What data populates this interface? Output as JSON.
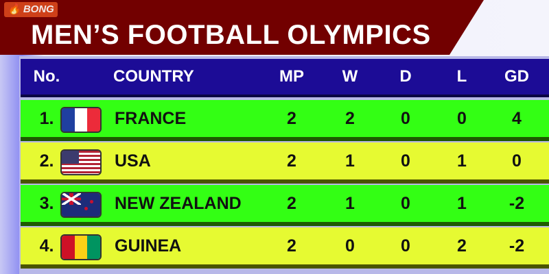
{
  "title": "MEN’S FOOTBALL OLYMPICS",
  "logo": "BONG",
  "headers": {
    "no": "No.",
    "country": "COUNTRY",
    "mp": "MP",
    "w": "W",
    "d": "D",
    "l": "L",
    "gd": "GD"
  },
  "rows": [
    {
      "no": "1.",
      "flag": "france-flag",
      "country": "FRANCE",
      "mp": "2",
      "w": "2",
      "d": "0",
      "l": "0",
      "gd": "4"
    },
    {
      "no": "2.",
      "flag": "usa-flag",
      "country": "USA",
      "mp": "2",
      "w": "1",
      "d": "0",
      "l": "1",
      "gd": "0"
    },
    {
      "no": "3.",
      "flag": "new-zealand-flag",
      "country": "NEW ZEALAND",
      "mp": "2",
      "w": "1",
      "d": "0",
      "l": "1",
      "gd": "-2"
    },
    {
      "no": "4.",
      "flag": "guinea-flag",
      "country": "GUINEA",
      "mp": "2",
      "w": "0",
      "d": "0",
      "l": "2",
      "gd": "-2"
    }
  ],
  "colors": {
    "title_bg": "#720000",
    "header_bg": "#1c0c96",
    "row_green": "#33ff14",
    "row_yellow": "#e6fa32"
  }
}
